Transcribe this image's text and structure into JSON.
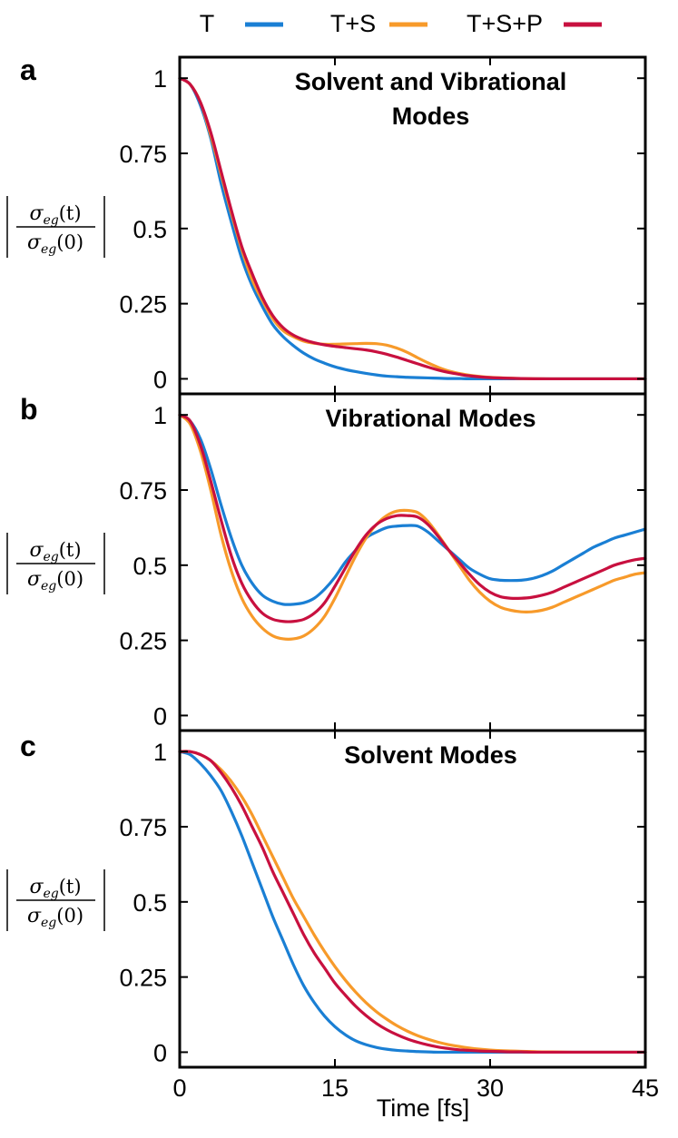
{
  "legend": [
    {
      "label": "T",
      "color": "#1a7fd4"
    },
    {
      "label": "T+S",
      "color": "#f79a2a"
    },
    {
      "label": "T+S+P",
      "color": "#c8103f"
    }
  ],
  "ylabel_parts": {
    "numerator_symbol": "σ",
    "subscript": "eg",
    "numerator_arg": "(t)",
    "denominator_symbol": "σ",
    "denominator_arg": "(0)"
  },
  "xlabel": "Time [fs]",
  "chart_data": [
    {
      "type": "line",
      "panel": "a",
      "title_lines": [
        "Solvent and Vibrational",
        "Modes"
      ],
      "xlabel": "Time [fs]",
      "ylabel": "|σeg(t)/σeg(0)|",
      "xlim": [
        0,
        45
      ],
      "ylim": [
        -0.05,
        1.07
      ],
      "xticks": [
        0,
        15,
        30,
        45
      ],
      "yticks": [
        0,
        0.25,
        0.5,
        0.75,
        1
      ],
      "ytick_labels": [
        "0",
        "0.25",
        "0.5",
        "0.75",
        "1"
      ],
      "x": [
        0,
        1,
        2,
        3,
        4,
        5,
        6,
        7,
        8,
        9,
        10,
        11,
        12,
        13,
        14,
        15,
        16,
        17,
        18,
        19,
        20,
        21,
        22,
        23,
        24,
        25,
        26,
        27,
        28,
        30,
        33,
        36,
        40,
        45
      ],
      "series": [
        {
          "name": "T",
          "values": [
            1.0,
            0.98,
            0.91,
            0.8,
            0.65,
            0.52,
            0.4,
            0.31,
            0.24,
            0.18,
            0.14,
            0.11,
            0.085,
            0.066,
            0.052,
            0.04,
            0.031,
            0.024,
            0.018,
            0.013,
            0.009,
            0.007,
            0.005,
            0.004,
            0.003,
            0.002,
            0.001,
            0.001,
            0.0,
            0.0,
            0.0,
            0.0,
            0.0,
            0.0
          ]
        },
        {
          "name": "T+S",
          "values": [
            1.0,
            0.98,
            0.92,
            0.81,
            0.68,
            0.55,
            0.43,
            0.33,
            0.26,
            0.2,
            0.16,
            0.14,
            0.125,
            0.118,
            0.115,
            0.115,
            0.116,
            0.117,
            0.118,
            0.117,
            0.112,
            0.102,
            0.088,
            0.07,
            0.053,
            0.038,
            0.026,
            0.018,
            0.012,
            0.005,
            0.001,
            0.0,
            0.0,
            0.0
          ]
        },
        {
          "name": "T+S+P",
          "values": [
            1.0,
            0.98,
            0.92,
            0.82,
            0.69,
            0.56,
            0.44,
            0.35,
            0.27,
            0.21,
            0.17,
            0.145,
            0.13,
            0.12,
            0.113,
            0.108,
            0.104,
            0.1,
            0.096,
            0.09,
            0.082,
            0.072,
            0.061,
            0.05,
            0.039,
            0.029,
            0.021,
            0.015,
            0.01,
            0.004,
            0.001,
            0.0,
            0.0,
            0.0
          ]
        }
      ]
    },
    {
      "type": "line",
      "panel": "b",
      "title_lines": [
        "Vibrational Modes"
      ],
      "xlabel": "Time [fs]",
      "ylabel": "|σeg(t)/σeg(0)|",
      "xlim": [
        0,
        45
      ],
      "ylim": [
        -0.05,
        1.07
      ],
      "xticks": [
        0,
        15,
        30,
        45
      ],
      "yticks": [
        0,
        0.25,
        0.5,
        0.75,
        1
      ],
      "ytick_labels": [
        "0",
        "0.25",
        "0.5",
        "0.75",
        "1"
      ],
      "x": [
        0,
        1,
        2,
        3,
        4,
        5,
        6,
        7,
        8,
        9,
        10,
        11,
        12,
        13,
        14,
        15,
        16,
        17,
        18,
        19,
        20,
        21,
        22,
        23,
        24,
        25,
        26,
        27,
        28,
        29,
        30,
        31,
        32,
        33,
        34,
        35,
        36,
        37,
        38,
        39,
        40,
        41,
        42,
        43,
        44,
        45
      ],
      "series": [
        {
          "name": "T",
          "values": [
            1.0,
            0.98,
            0.92,
            0.82,
            0.7,
            0.59,
            0.5,
            0.44,
            0.4,
            0.38,
            0.37,
            0.37,
            0.375,
            0.39,
            0.42,
            0.46,
            0.51,
            0.55,
            0.59,
            0.61,
            0.625,
            0.63,
            0.632,
            0.63,
            0.61,
            0.58,
            0.55,
            0.52,
            0.49,
            0.47,
            0.455,
            0.45,
            0.449,
            0.45,
            0.455,
            0.465,
            0.48,
            0.5,
            0.52,
            0.54,
            0.56,
            0.575,
            0.59,
            0.6,
            0.61,
            0.62
          ]
        },
        {
          "name": "T+S",
          "values": [
            1.0,
            0.97,
            0.88,
            0.75,
            0.6,
            0.48,
            0.39,
            0.33,
            0.29,
            0.265,
            0.255,
            0.255,
            0.265,
            0.29,
            0.33,
            0.39,
            0.46,
            0.53,
            0.59,
            0.635,
            0.665,
            0.68,
            0.682,
            0.675,
            0.645,
            0.6,
            0.55,
            0.5,
            0.45,
            0.41,
            0.38,
            0.36,
            0.35,
            0.345,
            0.345,
            0.35,
            0.36,
            0.375,
            0.39,
            0.405,
            0.42,
            0.435,
            0.45,
            0.46,
            0.47,
            0.475
          ]
        },
        {
          "name": "T+S+P",
          "values": [
            1.0,
            0.98,
            0.9,
            0.78,
            0.65,
            0.53,
            0.44,
            0.38,
            0.34,
            0.32,
            0.313,
            0.313,
            0.32,
            0.34,
            0.375,
            0.43,
            0.49,
            0.55,
            0.6,
            0.635,
            0.655,
            0.665,
            0.665,
            0.66,
            0.635,
            0.595,
            0.55,
            0.51,
            0.47,
            0.435,
            0.41,
            0.395,
            0.39,
            0.39,
            0.393,
            0.4,
            0.41,
            0.425,
            0.44,
            0.455,
            0.47,
            0.485,
            0.5,
            0.51,
            0.518,
            0.523
          ]
        }
      ]
    },
    {
      "type": "line",
      "panel": "c",
      "title_lines": [
        "Solvent Modes"
      ],
      "xlabel": "Time [fs]",
      "ylabel": "|σeg(t)/σeg(0)|",
      "xlim": [
        0,
        45
      ],
      "ylim": [
        -0.05,
        1.07
      ],
      "xticks": [
        0,
        15,
        30,
        45
      ],
      "yticks": [
        0,
        0.25,
        0.5,
        0.75,
        1
      ],
      "ytick_labels": [
        "0",
        "0.25",
        "0.5",
        "0.75",
        "1"
      ],
      "x": [
        0,
        1,
        2,
        3,
        4,
        5,
        6,
        7,
        8,
        9,
        10,
        11,
        12,
        13,
        14,
        15,
        16,
        17,
        18,
        19,
        20,
        21,
        22,
        23,
        24,
        25,
        26,
        27,
        28,
        29,
        30,
        31,
        32,
        33,
        34,
        35,
        36,
        38,
        40,
        42,
        45
      ],
      "series": [
        {
          "name": "T",
          "values": [
            1.0,
            0.99,
            0.96,
            0.92,
            0.87,
            0.8,
            0.72,
            0.63,
            0.54,
            0.45,
            0.37,
            0.29,
            0.22,
            0.165,
            0.12,
            0.085,
            0.058,
            0.038,
            0.025,
            0.016,
            0.01,
            0.006,
            0.004,
            0.002,
            0.001,
            0.0,
            0.0,
            0.0,
            0.0,
            0.0,
            0.0,
            0.0,
            0.0,
            0.0,
            0.0,
            0.0,
            0.0,
            0.0,
            0.0,
            0.0,
            0.0
          ]
        },
        {
          "name": "T+S",
          "values": [
            1.0,
            1.0,
            0.99,
            0.97,
            0.94,
            0.9,
            0.85,
            0.79,
            0.72,
            0.65,
            0.58,
            0.51,
            0.45,
            0.39,
            0.335,
            0.285,
            0.24,
            0.2,
            0.165,
            0.135,
            0.11,
            0.088,
            0.07,
            0.055,
            0.043,
            0.033,
            0.025,
            0.019,
            0.014,
            0.01,
            0.007,
            0.005,
            0.004,
            0.003,
            0.002,
            0.001,
            0.001,
            0.0,
            0.0,
            0.0,
            0.0
          ]
        },
        {
          "name": "T+S+P",
          "values": [
            1.0,
            1.0,
            0.99,
            0.97,
            0.93,
            0.88,
            0.82,
            0.75,
            0.68,
            0.6,
            0.53,
            0.46,
            0.39,
            0.33,
            0.28,
            0.23,
            0.19,
            0.153,
            0.122,
            0.096,
            0.075,
            0.058,
            0.044,
            0.033,
            0.024,
            0.017,
            0.012,
            0.008,
            0.006,
            0.004,
            0.003,
            0.002,
            0.001,
            0.001,
            0.0,
            0.0,
            0.0,
            0.0,
            0.0,
            0.0,
            0.0
          ]
        }
      ]
    }
  ]
}
